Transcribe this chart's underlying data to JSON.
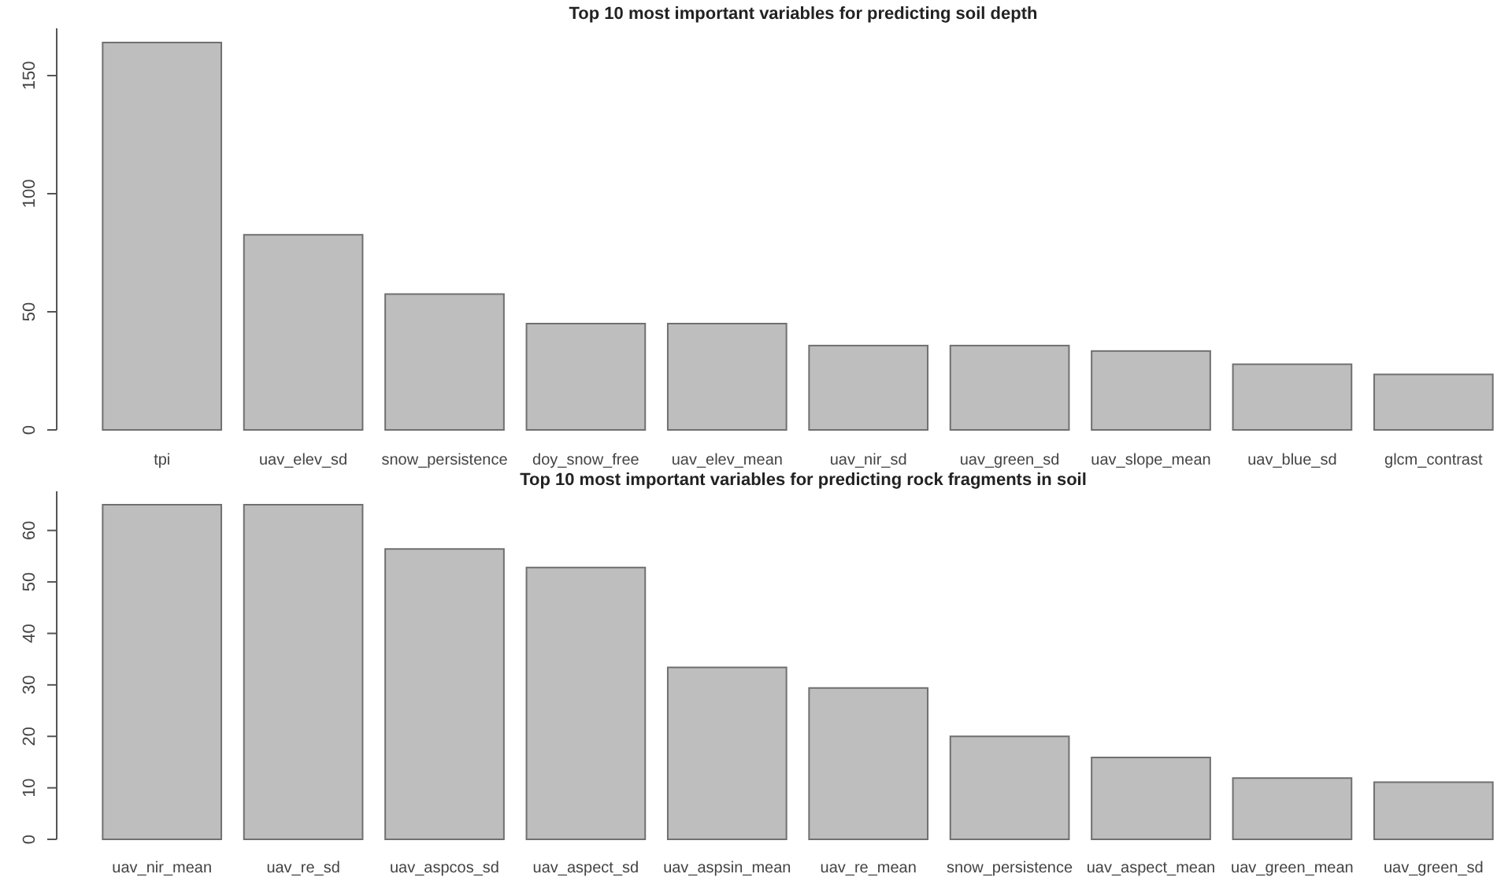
{
  "chart_data": [
    {
      "type": "bar",
      "title": "Top 10 most important variables for predicting soil depth",
      "categories": [
        "tpi",
        "uav_elev_sd",
        "snow_persistence",
        "doy_snow_free",
        "uav_elev_mean",
        "uav_nir_sd",
        "uav_green_sd",
        "uav_slope_mean",
        "uav_blue_sd",
        "glcm_contrast"
      ],
      "values": [
        164,
        82.6,
        57.5,
        45,
        45,
        35.7,
        35.7,
        33.4,
        27.8,
        23.5
      ],
      "color": "#bebebe",
      "ylim": [
        0,
        170
      ],
      "yticks": [
        0,
        50,
        100,
        150
      ],
      "grid": false
    },
    {
      "type": "bar",
      "title": "Top 10 most important variables for predicting rock fragments in soil",
      "categories": [
        "uav_nir_mean",
        "uav_re_sd",
        "uav_aspcos_sd",
        "uav_aspect_sd",
        "uav_aspsin_mean",
        "uav_re_mean",
        "snow_persistence",
        "uav_aspect_mean",
        "uav_green_mean",
        "uav_green_sd"
      ],
      "values": [
        65.0,
        65.0,
        56.4,
        52.8,
        33.4,
        29.4,
        20.0,
        15.9,
        11.9,
        11.1
      ],
      "color": "#bebebe",
      "ylim": [
        0,
        67.6
      ],
      "yticks": [
        0,
        10,
        20,
        30,
        40,
        50,
        60
      ],
      "grid": false
    }
  ]
}
